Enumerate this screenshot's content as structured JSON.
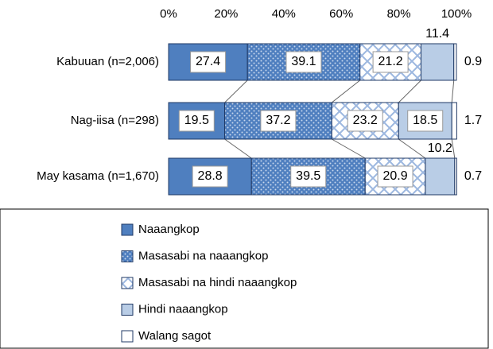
{
  "chart_data": {
    "type": "stacked-bar-horizontal",
    "categories": [
      "Kabuuan (n=2,006)",
      "Nag-iisa (n=298)",
      "May kasama (n=1,670)"
    ],
    "series": [
      {
        "name": "Naaangkop",
        "color": "#4f7fbf",
        "values": [
          27.4,
          19.5,
          28.8
        ]
      },
      {
        "name": "Masasabi na naaangkop",
        "color": "#7fa3d6",
        "values": [
          39.1,
          37.2,
          39.5
        ]
      },
      {
        "name": "Masasabi na hindi naaangkop",
        "color": "#dce7f5",
        "values": [
          21.2,
          23.2,
          20.9
        ]
      },
      {
        "name": "Hindi naaangkop",
        "color": "#b9cde6",
        "values": [
          11.4,
          18.5,
          10.2
        ]
      },
      {
        "name": "Walang sagot",
        "color": "#ffffff",
        "values": [
          0.9,
          1.7,
          0.7
        ]
      }
    ],
    "xlim": [
      0,
      100
    ],
    "xticks": [
      {
        "value": 0,
        "label": "0%"
      },
      {
        "value": 20,
        "label": "20%"
      },
      {
        "value": 40,
        "label": "40%"
      },
      {
        "value": 60,
        "label": "60%"
      },
      {
        "value": 80,
        "label": "80%"
      },
      {
        "value": 100,
        "label": "100%"
      }
    ],
    "legend": "bottom"
  }
}
